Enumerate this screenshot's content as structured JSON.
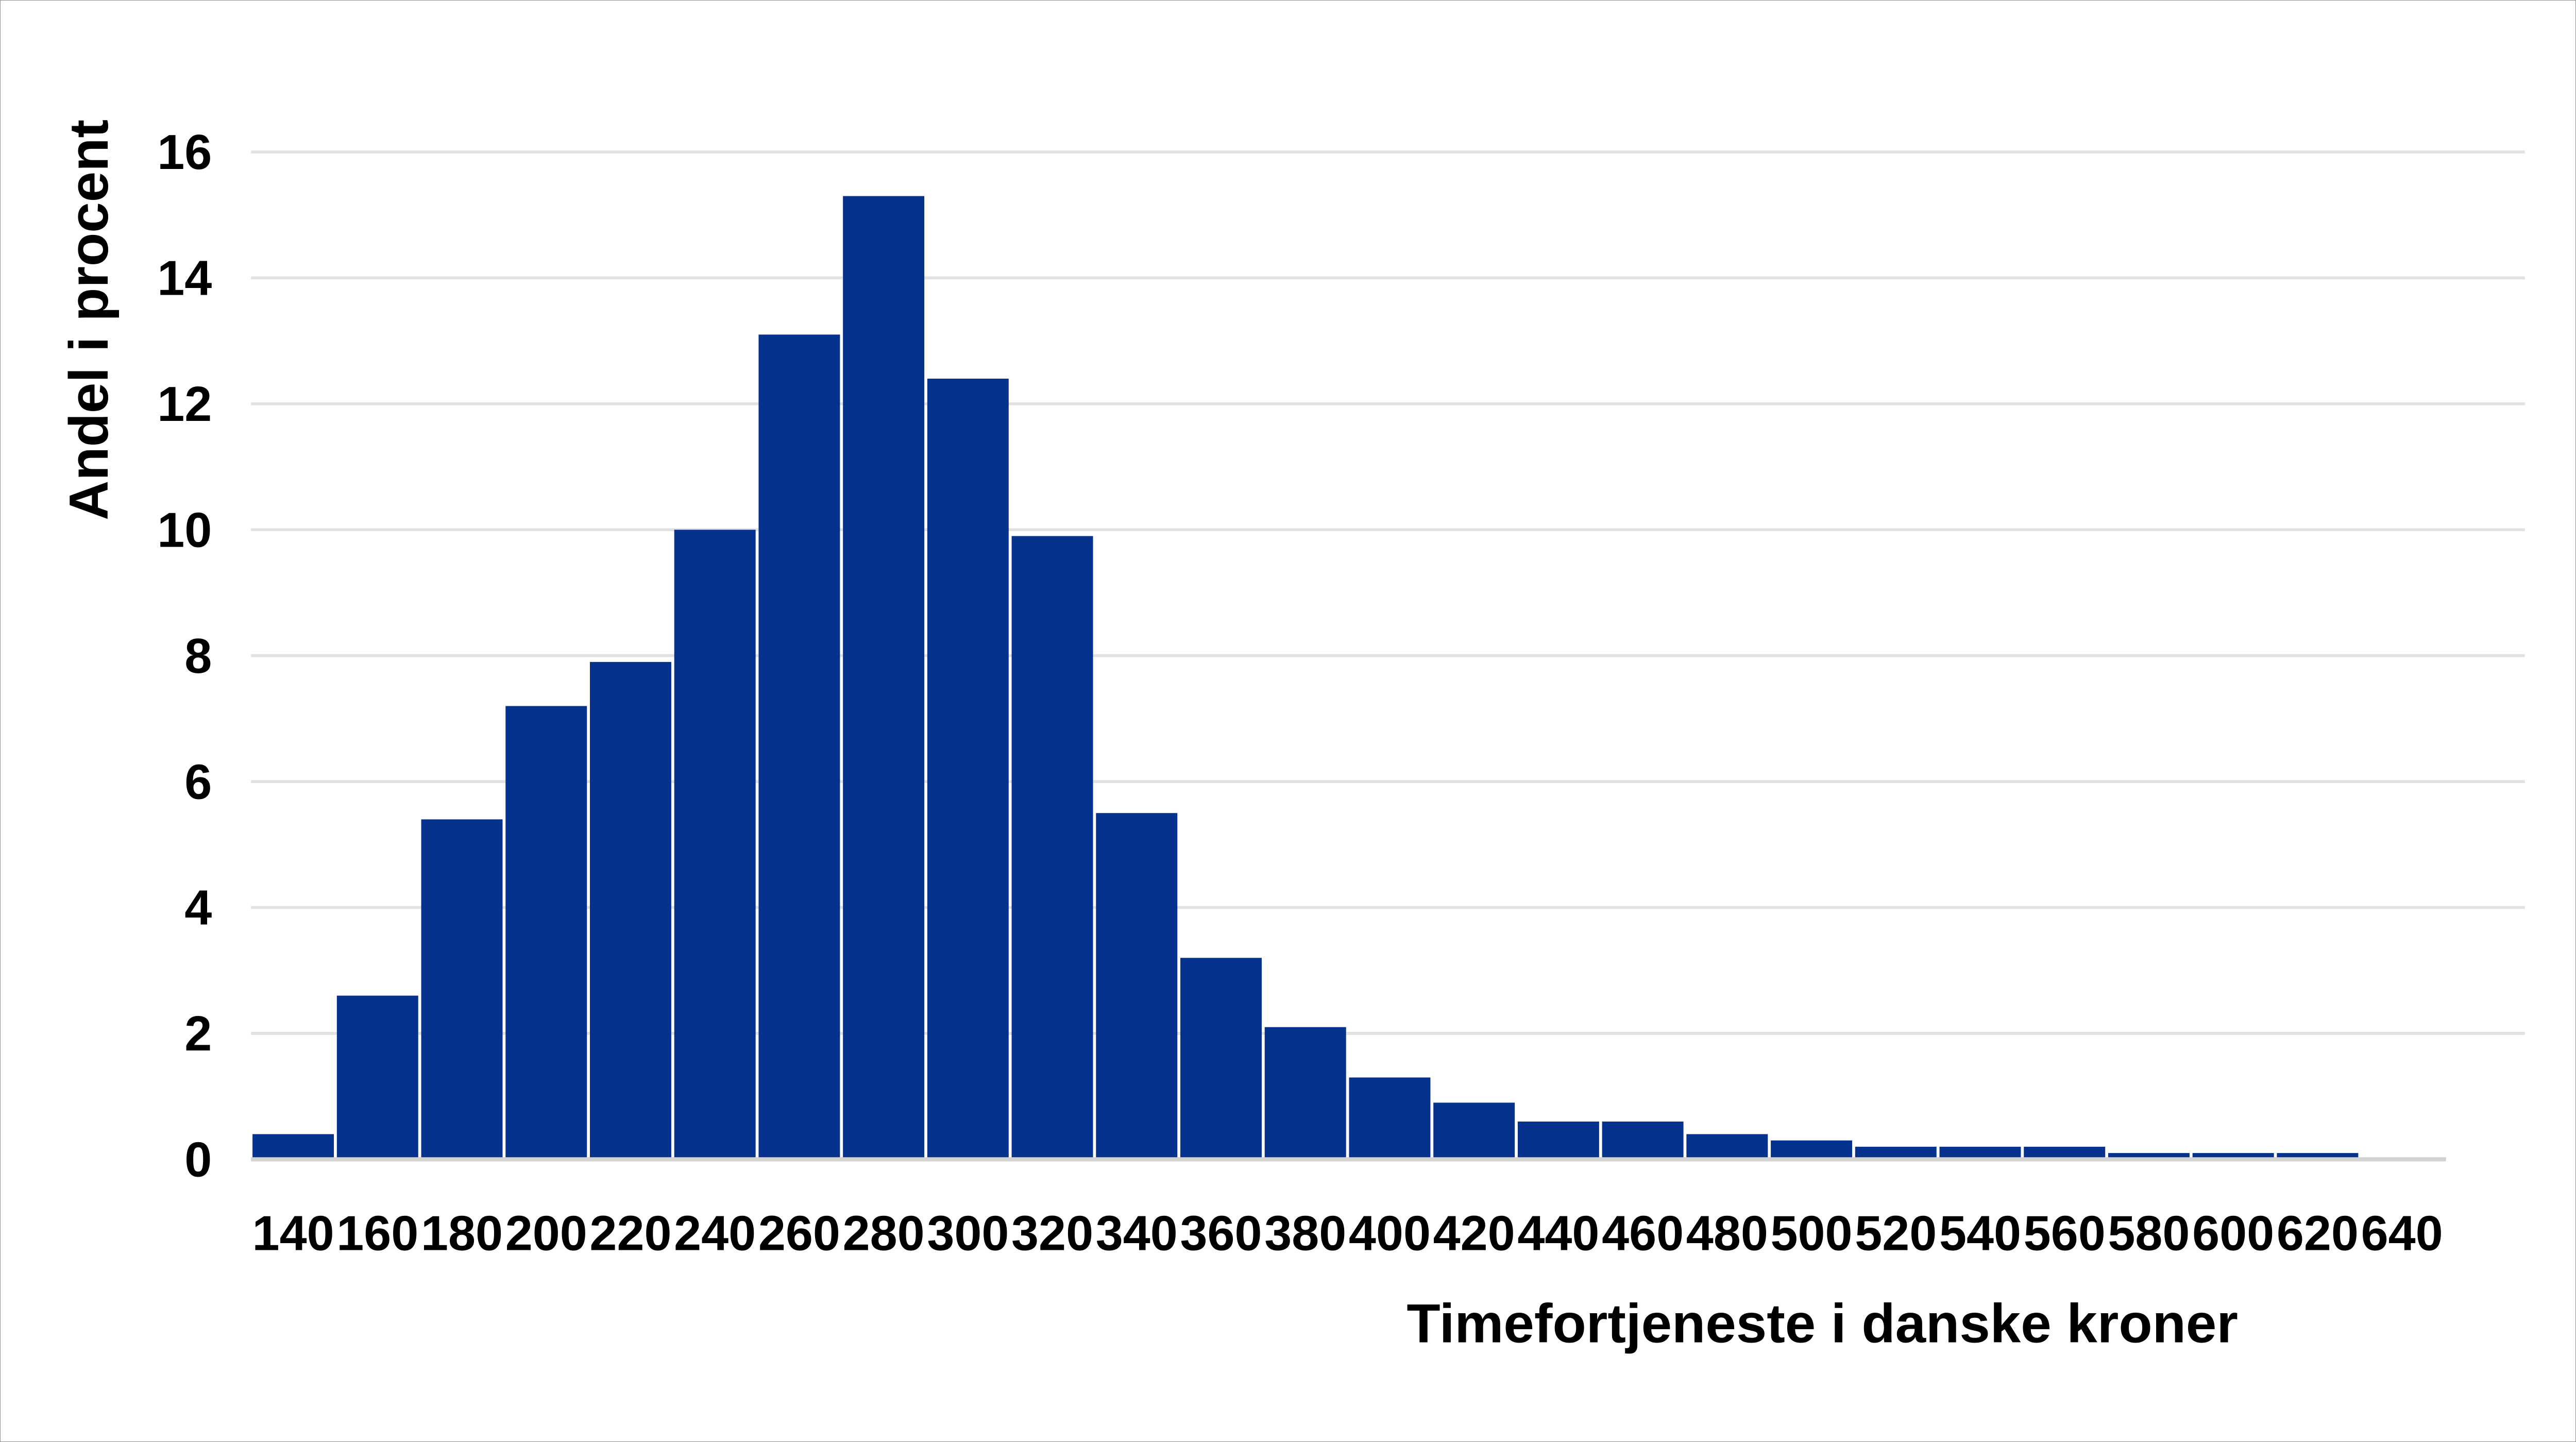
{
  "chart_data": {
    "type": "bar",
    "subtype": "histogram",
    "title": "",
    "xlabel": "Timefortjeneste i danske kroner",
    "ylabel": "Andel i procent",
    "categories": [
      140,
      160,
      180,
      200,
      220,
      240,
      260,
      280,
      300,
      320,
      340,
      360,
      380,
      400,
      420,
      440,
      460,
      480,
      500,
      520,
      540,
      560,
      580,
      600,
      620,
      640
    ],
    "values": [
      0.4,
      2.6,
      5.4,
      7.2,
      7.9,
      10.0,
      13.1,
      15.3,
      12.4,
      9.9,
      5.5,
      3.2,
      2.1,
      1.3,
      0.9,
      0.6,
      0.6,
      0.4,
      0.3,
      0.2,
      0.2,
      0.2,
      0.1,
      0.1,
      0.1
    ],
    "bin_width": 20,
    "y_ticks": [
      0,
      2,
      4,
      6,
      8,
      10,
      12,
      14,
      16
    ],
    "ylim": [
      0,
      16.5
    ],
    "grid": "horizontal-only",
    "legend_position": "none"
  },
  "colors": {
    "bar_fill": "#04328C",
    "bar_separator": "#ffffff",
    "gridline": "#e2e2e2",
    "axis_line": "#d2d2d2",
    "text": "#000000",
    "background": "#ffffff",
    "frame_border": "#8f8f8f"
  }
}
